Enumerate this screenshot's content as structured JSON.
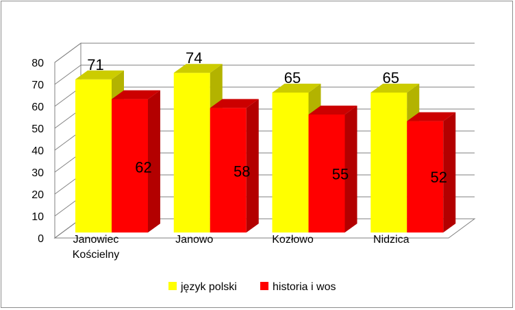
{
  "chart_data": {
    "type": "bar",
    "categories": [
      "Janowiec Kościelny",
      "Janowo",
      "Kozłowo",
      "Nidzica"
    ],
    "series": [
      {
        "name": "język polski",
        "values": [
          71,
          74,
          65,
          65
        ],
        "color": "#ffff00",
        "side_color": "#b3b300",
        "top_color": "#cccc00"
      },
      {
        "name": "historia i wos",
        "values": [
          62,
          58,
          55,
          52
        ],
        "color": "#ff0000",
        "side_color": "#b30000",
        "top_color": "#cc0000"
      }
    ],
    "ylim": [
      0,
      80
    ],
    "yticks": [
      0,
      10,
      20,
      30,
      40,
      50,
      60,
      70,
      80
    ],
    "grid": true,
    "legend": "bottom",
    "data_labels": true
  }
}
